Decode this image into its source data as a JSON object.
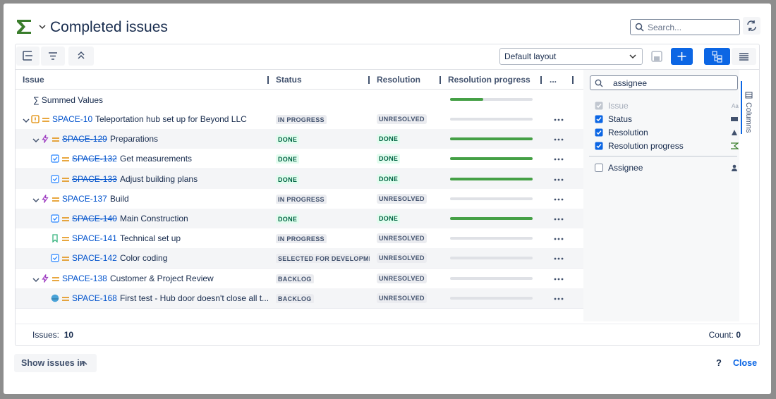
{
  "dialog": {
    "title": "Completed issues",
    "search_placeholder": "Search...",
    "layout": "Default layout"
  },
  "table": {
    "headers": [
      "Issue",
      "Status",
      "Resolution",
      "Resolution progress",
      "..."
    ],
    "summary": {
      "label": "∑ Summed Values",
      "progress": 40
    },
    "rows": [
      {
        "key": "SPACE-10",
        "summary": "Teleportation hub set up for Beyond LLC",
        "status": "IN PROGRESS",
        "resolution": "UNRESOLVED",
        "progress": 0,
        "level": 0,
        "type": "custom",
        "struck": false
      },
      {
        "key": "SPACE-129",
        "summary": "Preparations",
        "status": "DONE",
        "resolution": "DONE",
        "progress": 100,
        "level": 1,
        "type": "epic",
        "struck": true
      },
      {
        "key": "SPACE-132",
        "summary": "Get measurements",
        "status": "DONE",
        "resolution": "DONE",
        "progress": 100,
        "level": 2,
        "type": "task",
        "struck": true
      },
      {
        "key": "SPACE-133",
        "summary": "Adjust building plans",
        "status": "DONE",
        "resolution": "DONE",
        "progress": 100,
        "level": 2,
        "type": "task",
        "struck": true
      },
      {
        "key": "SPACE-137",
        "summary": "Build",
        "status": "IN PROGRESS",
        "resolution": "UNRESOLVED",
        "progress": 0,
        "level": 1,
        "type": "epic",
        "struck": false
      },
      {
        "key": "SPACE-140",
        "summary": "Main Construction",
        "status": "DONE",
        "resolution": "DONE",
        "progress": 100,
        "level": 2,
        "type": "task",
        "struck": true
      },
      {
        "key": "SPACE-141",
        "summary": "Technical set up",
        "status": "IN PROGRESS",
        "resolution": "UNRESOLVED",
        "progress": 0,
        "level": 2,
        "type": "story",
        "struck": false
      },
      {
        "key": "SPACE-142",
        "summary": "Color coding",
        "status": "SELECTED FOR DEVELOPMENT",
        "resolution": "UNRESOLVED",
        "progress": 0,
        "level": 2,
        "type": "task",
        "struck": false
      },
      {
        "key": "SPACE-138",
        "summary": "Customer & Project Review",
        "status": "BACKLOG",
        "resolution": "UNRESOLVED",
        "progress": 0,
        "level": 1,
        "type": "epic",
        "struck": false
      },
      {
        "key": "SPACE-168",
        "summary": "First test - Hub door doesn't close all t...",
        "status": "BACKLOG",
        "resolution": "UNRESOLVED",
        "progress": 0,
        "level": 2,
        "type": "bug",
        "struck": false
      }
    ]
  },
  "columns_panel": {
    "title": "Columns",
    "search": "assignee",
    "options": [
      {
        "label": "Issue",
        "checked": true,
        "disabled": true
      },
      {
        "label": "Status",
        "checked": true,
        "disabled": false
      },
      {
        "label": "Resolution",
        "checked": true,
        "disabled": false
      },
      {
        "label": "Resolution progress",
        "checked": true,
        "disabled": false
      },
      {
        "label": "Assignee",
        "checked": false,
        "disabled": false
      }
    ]
  },
  "footer": {
    "issues_label": "Issues:",
    "issues": 10,
    "count_label": "Count:",
    "count": 0
  },
  "bottom": {
    "show_issues": "Show issues in",
    "help": "?",
    "close": "Close"
  }
}
